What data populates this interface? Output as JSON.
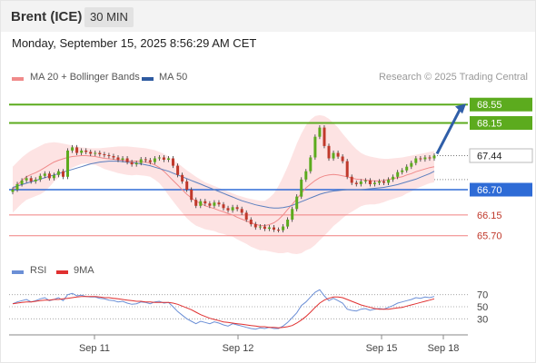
{
  "header": {
    "title": "Brent (ICE)",
    "interval": "30 MIN"
  },
  "timestamp": "Monday, September 15, 2025 8:56:29 AM CET",
  "legend": {
    "ma_bb": "MA 20 + Bollinger Bands",
    "ma50": "MA 50",
    "rsi": "RSI",
    "rsi_ma": "9MA"
  },
  "credit": "Research © 2025 Trading Central",
  "colors": {
    "green": "#5cab1e",
    "blue_line": "#2e6bd6",
    "red_line": "#f08080",
    "arrow": "#2f5ea8",
    "band_fill": "#fcd7d7",
    "ma50": "#5b7fbf",
    "ma20": "#f08a8a",
    "candle_up": "#5cab1e",
    "candle_down": "#c0392b",
    "rsi": "#6b8fd6",
    "rsi_ma": "#e03030"
  },
  "chart_data": {
    "type": "candlestick",
    "x_ticks": [
      "Sep 11",
      "Sep 12",
      "Sep 15",
      "Sep 18"
    ],
    "ylim": [
      65.3,
      68.85
    ],
    "current_price": 67.44,
    "levels": [
      {
        "value": 68.55,
        "label": "68.55",
        "kind": "resistance"
      },
      {
        "value": 68.15,
        "label": "68.15",
        "kind": "resistance"
      },
      {
        "value": 67.44,
        "label": "67.44",
        "kind": "current"
      },
      {
        "value": 66.7,
        "label": "66.70",
        "kind": "pivot"
      },
      {
        "value": 66.15,
        "label": "66.15",
        "kind": "support"
      },
      {
        "value": 65.7,
        "label": "65.70",
        "kind": "support"
      }
    ],
    "close": [
      66.7,
      66.82,
      66.9,
      66.95,
      66.88,
      66.92,
      67.0,
      67.05,
      66.95,
      67.02,
      67.1,
      66.98,
      67.55,
      67.62,
      67.5,
      67.55,
      67.52,
      67.48,
      67.5,
      67.47,
      67.45,
      67.43,
      67.4,
      67.35,
      67.38,
      67.3,
      67.25,
      67.28,
      67.36,
      67.34,
      67.3,
      67.38,
      67.4,
      67.35,
      67.38,
      67.22,
      67.02,
      66.88,
      66.7,
      66.48,
      66.35,
      66.45,
      66.4,
      66.35,
      66.42,
      66.38,
      66.3,
      66.25,
      66.32,
      66.28,
      66.2,
      66.05,
      65.95,
      65.88,
      65.9,
      65.85,
      65.88,
      65.83,
      65.82,
      65.9,
      66.05,
      66.28,
      66.55,
      66.92,
      67.1,
      67.4,
      67.85,
      68.05,
      67.65,
      67.38,
      67.5,
      67.42,
      67.32,
      66.98,
      66.85,
      66.82,
      66.88,
      66.9,
      66.82,
      66.85,
      66.88,
      66.85,
      66.92,
      66.98,
      67.08,
      67.12,
      67.2,
      67.28,
      67.38,
      67.36,
      67.4,
      67.38,
      67.44
    ],
    "ma20": [
      66.7,
      66.8,
      66.9,
      66.98,
      67.03,
      67.07,
      67.12,
      67.18,
      67.24,
      67.3,
      67.34,
      67.37,
      67.4,
      67.42,
      67.43,
      67.44,
      67.44,
      67.43,
      67.42,
      67.4,
      67.38,
      67.37,
      67.36,
      67.35,
      67.34,
      67.33,
      67.32,
      67.32,
      67.31,
      67.3,
      67.28,
      67.24,
      67.18,
      67.1,
      67.0,
      66.9,
      66.8,
      66.7,
      66.6,
      66.52,
      66.45,
      66.4,
      66.35,
      66.32,
      66.29,
      66.25,
      66.22,
      66.18,
      66.15,
      66.1,
      66.06,
      66.02,
      65.98,
      65.95,
      65.92,
      65.92,
      65.94,
      65.98,
      66.05,
      66.15,
      66.27,
      66.38,
      66.5,
      66.62,
      66.74,
      66.82,
      66.9,
      66.96,
      67.0,
      67.02,
      67.03,
      67.02,
      67.0,
      66.98,
      66.95,
      66.93,
      66.92,
      66.91,
      66.9,
      66.89,
      66.89,
      66.9,
      66.92,
      66.94,
      66.96,
      66.98,
      67.02,
      67.05,
      67.09,
      67.12,
      67.15,
      67.18,
      67.2
    ],
    "bb_upper": [
      67.2,
      67.3,
      67.4,
      67.48,
      67.55,
      67.6,
      67.65,
      67.7,
      67.72,
      67.73,
      67.72,
      67.7,
      67.68,
      67.66,
      67.64,
      67.62,
      67.61,
      67.6,
      67.6,
      67.6,
      67.61,
      67.62,
      67.63,
      67.64,
      67.64,
      67.64,
      67.63,
      67.62,
      67.61,
      67.6,
      67.58,
      67.56,
      67.52,
      67.48,
      67.42,
      67.35,
      67.28,
      67.2,
      67.12,
      67.05,
      66.98,
      66.92,
      66.86,
      66.82,
      66.78,
      66.74,
      66.7,
      66.66,
      66.62,
      66.58,
      66.55,
      66.52,
      66.5,
      66.48,
      66.46,
      66.46,
      66.52,
      66.62,
      66.78,
      66.98,
      67.2,
      67.45,
      67.7,
      67.92,
      68.1,
      68.22,
      68.3,
      68.32,
      68.3,
      68.24,
      68.15,
      68.05,
      67.92,
      67.8,
      67.68,
      67.58,
      67.5,
      67.45,
      67.42,
      67.4,
      67.38,
      67.37,
      67.37,
      67.38,
      67.39,
      67.4,
      67.42,
      67.44,
      67.46,
      67.48,
      67.5,
      67.52,
      67.54
    ],
    "bb_lower": [
      66.2,
      66.3,
      66.4,
      66.48,
      66.52,
      66.56,
      66.6,
      66.66,
      66.76,
      66.87,
      66.96,
      67.04,
      67.12,
      67.18,
      67.22,
      67.26,
      67.27,
      67.26,
      67.24,
      67.2,
      67.15,
      67.12,
      67.09,
      67.06,
      67.04,
      67.02,
      67.01,
      67.02,
      67.01,
      67.0,
      66.98,
      66.92,
      66.84,
      66.72,
      66.58,
      66.45,
      66.32,
      66.2,
      66.08,
      65.99,
      65.92,
      65.88,
      65.84,
      65.82,
      65.8,
      65.76,
      65.74,
      65.7,
      65.68,
      65.62,
      65.57,
      65.52,
      65.46,
      65.42,
      65.38,
      65.38,
      65.36,
      65.34,
      65.32,
      65.32,
      65.34,
      65.31,
      65.3,
      65.32,
      65.38,
      65.42,
      65.5,
      65.6,
      65.7,
      65.8,
      65.91,
      65.99,
      66.08,
      66.16,
      66.22,
      66.28,
      66.34,
      66.37,
      66.38,
      66.38,
      66.4,
      66.43,
      66.47,
      66.5,
      66.53,
      66.56,
      66.62,
      66.66,
      66.72,
      66.76,
      66.8,
      66.84,
      66.86
    ],
    "ma50": [
      66.75,
      66.78,
      66.81,
      66.84,
      66.87,
      66.9,
      66.93,
      66.96,
      66.99,
      67.02,
      67.05,
      67.08,
      67.11,
      67.14,
      67.17,
      67.2,
      67.23,
      67.26,
      67.28,
      67.3,
      67.31,
      67.32,
      67.32,
      67.32,
      67.31,
      67.3,
      67.29,
      67.28,
      67.26,
      67.24,
      67.22,
      67.19,
      67.16,
      67.13,
      67.1,
      67.06,
      67.02,
      66.98,
      66.94,
      66.9,
      66.86,
      66.82,
      66.78,
      66.74,
      66.7,
      66.66,
      66.62,
      66.58,
      66.54,
      66.5,
      66.46,
      66.43,
      66.4,
      66.37,
      66.35,
      66.33,
      66.31,
      66.3,
      66.3,
      66.31,
      66.33,
      66.36,
      66.4,
      66.44,
      66.48,
      66.52,
      66.56,
      66.6,
      66.63,
      66.65,
      66.67,
      66.68,
      66.69,
      66.7,
      66.7,
      66.7,
      66.7,
      66.71,
      66.72,
      66.73,
      66.74,
      66.75,
      66.77,
      66.79,
      66.81,
      66.84,
      66.87,
      66.9,
      66.93,
      66.97,
      67.01,
      67.05,
      67.1
    ],
    "rsi": {
      "ylim": [
        5,
        95
      ],
      "ticks": [
        70,
        50,
        30
      ],
      "rsi": [
        55,
        58,
        60,
        62,
        58,
        60,
        63,
        65,
        60,
        62,
        65,
        60,
        70,
        72,
        68,
        69,
        67,
        66,
        66,
        64,
        63,
        61,
        60,
        58,
        59,
        56,
        54,
        55,
        58,
        57,
        55,
        58,
        59,
        56,
        57,
        50,
        42,
        36,
        30,
        26,
        22,
        26,
        24,
        22,
        25,
        23,
        20,
        18,
        22,
        20,
        18,
        16,
        14,
        13,
        15,
        14,
        16,
        14,
        14,
        18,
        24,
        32,
        40,
        52,
        58,
        66,
        74,
        78,
        68,
        60,
        64,
        60,
        56,
        46,
        44,
        43,
        46,
        47,
        44,
        46,
        47,
        46,
        49,
        52,
        56,
        58,
        60,
        62,
        65,
        64,
        66,
        65,
        67
      ],
      "ma": [
        55,
        56,
        57,
        58,
        58,
        59,
        60,
        61,
        61,
        62,
        62,
        63,
        64,
        65,
        66,
        67,
        67,
        67,
        67,
        66,
        65,
        65,
        64,
        63,
        62,
        61,
        60,
        59,
        59,
        58,
        58,
        57,
        57,
        57,
        57,
        56,
        54,
        51,
        48,
        45,
        41,
        37,
        34,
        31,
        29,
        27,
        25,
        24,
        23,
        22,
        21,
        20,
        19,
        18,
        17,
        17,
        16,
        16,
        15,
        16,
        17,
        19,
        23,
        28,
        34,
        41,
        49,
        56,
        61,
        64,
        66,
        66,
        65,
        62,
        59,
        56,
        53,
        51,
        49,
        47,
        46,
        46,
        46,
        47,
        48,
        49,
        51,
        53,
        55,
        57,
        59,
        61,
        63
      ]
    }
  }
}
